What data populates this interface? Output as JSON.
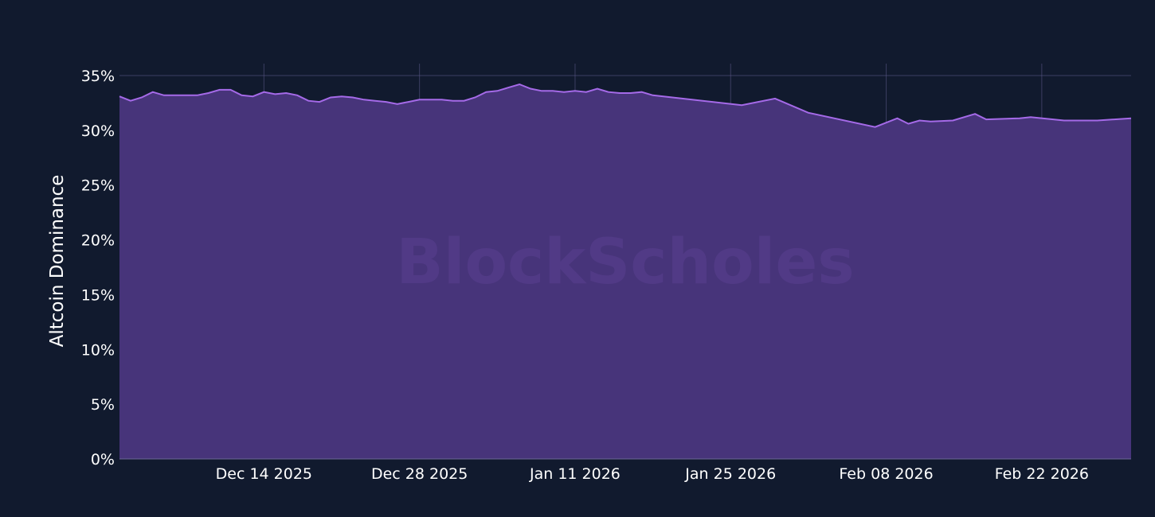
{
  "chart_data": {
    "type": "area",
    "title": "",
    "xlabel": "",
    "ylabel": "Altcoin Dominance",
    "watermark": "BlockScholes",
    "ylim": [
      0,
      36
    ],
    "xlim": [
      "2025-12-01",
      "2026-03-03"
    ],
    "yticks": [
      0,
      5,
      10,
      15,
      20,
      25,
      30,
      35
    ],
    "ytick_labels": [
      "0%",
      "5%",
      "10%",
      "15%",
      "20%",
      "25%",
      "30%",
      "35%"
    ],
    "xticks": [
      "2025-12-14",
      "2025-12-28",
      "2026-01-11",
      "2026-01-25",
      "2026-02-08",
      "2026-02-22"
    ],
    "xtick_labels": [
      "Dec 14 2025",
      "Dec 28 2025",
      "Jan 11 2026",
      "Jan 25 2026",
      "Feb 08 2026",
      "Feb 22 2026"
    ],
    "grid": true,
    "colors": {
      "background": "#111a2e",
      "line": "#a56ae8",
      "fill": "#47347a",
      "grid": "#5e5a8c"
    },
    "series": [
      {
        "x": [
          "2025-12-01",
          "2025-12-02",
          "2025-12-03",
          "2025-12-04",
          "2025-12-05",
          "2025-12-06",
          "2025-12-07",
          "2025-12-08",
          "2025-12-09",
          "2025-12-10",
          "2025-12-11",
          "2025-12-12",
          "2025-12-13",
          "2025-12-14",
          "2025-12-15",
          "2025-12-16",
          "2025-12-17",
          "2025-12-18",
          "2025-12-19",
          "2025-12-20",
          "2025-12-21",
          "2025-12-22",
          "2025-12-23",
          "2025-12-24",
          "2025-12-25",
          "2025-12-26",
          "2025-12-27",
          "2025-12-28",
          "2025-12-29",
          "2025-12-30",
          "2025-12-31",
          "2026-01-01",
          "2026-01-02",
          "2026-01-03",
          "2026-01-04",
          "2026-01-05",
          "2026-01-06",
          "2026-01-07",
          "2026-01-08",
          "2026-01-09",
          "2026-01-10",
          "2026-01-11",
          "2026-01-12",
          "2026-01-13",
          "2026-01-14",
          "2026-01-15",
          "2026-01-16",
          "2026-01-17",
          "2026-01-18",
          "2026-01-26",
          "2026-01-29",
          "2026-02-01",
          "2026-02-07",
          "2026-02-09",
          "2026-02-10",
          "2026-02-11",
          "2026-02-12",
          "2026-02-14",
          "2026-02-16",
          "2026-02-17",
          "2026-02-20",
          "2026-02-21",
          "2026-02-24",
          "2026-02-27",
          "2026-03-03"
        ],
        "y": [
          33.1,
          32.7,
          33.0,
          33.5,
          33.2,
          33.2,
          33.2,
          33.2,
          33.4,
          33.7,
          33.7,
          33.2,
          33.1,
          33.5,
          33.3,
          33.4,
          33.2,
          32.7,
          32.6,
          33.0,
          33.1,
          33.0,
          32.8,
          32.7,
          32.6,
          32.4,
          32.6,
          32.8,
          32.8,
          32.8,
          32.7,
          32.7,
          33.0,
          33.5,
          33.6,
          33.9,
          34.2,
          33.8,
          33.6,
          33.6,
          33.5,
          33.6,
          33.5,
          33.8,
          33.5,
          33.4,
          33.4,
          33.5,
          33.2,
          32.3,
          32.9,
          31.6,
          30.3,
          31.1,
          30.6,
          30.9,
          30.8,
          30.9,
          31.5,
          31.0,
          31.1,
          31.2,
          30.9,
          30.9,
          31.1
        ]
      }
    ]
  }
}
